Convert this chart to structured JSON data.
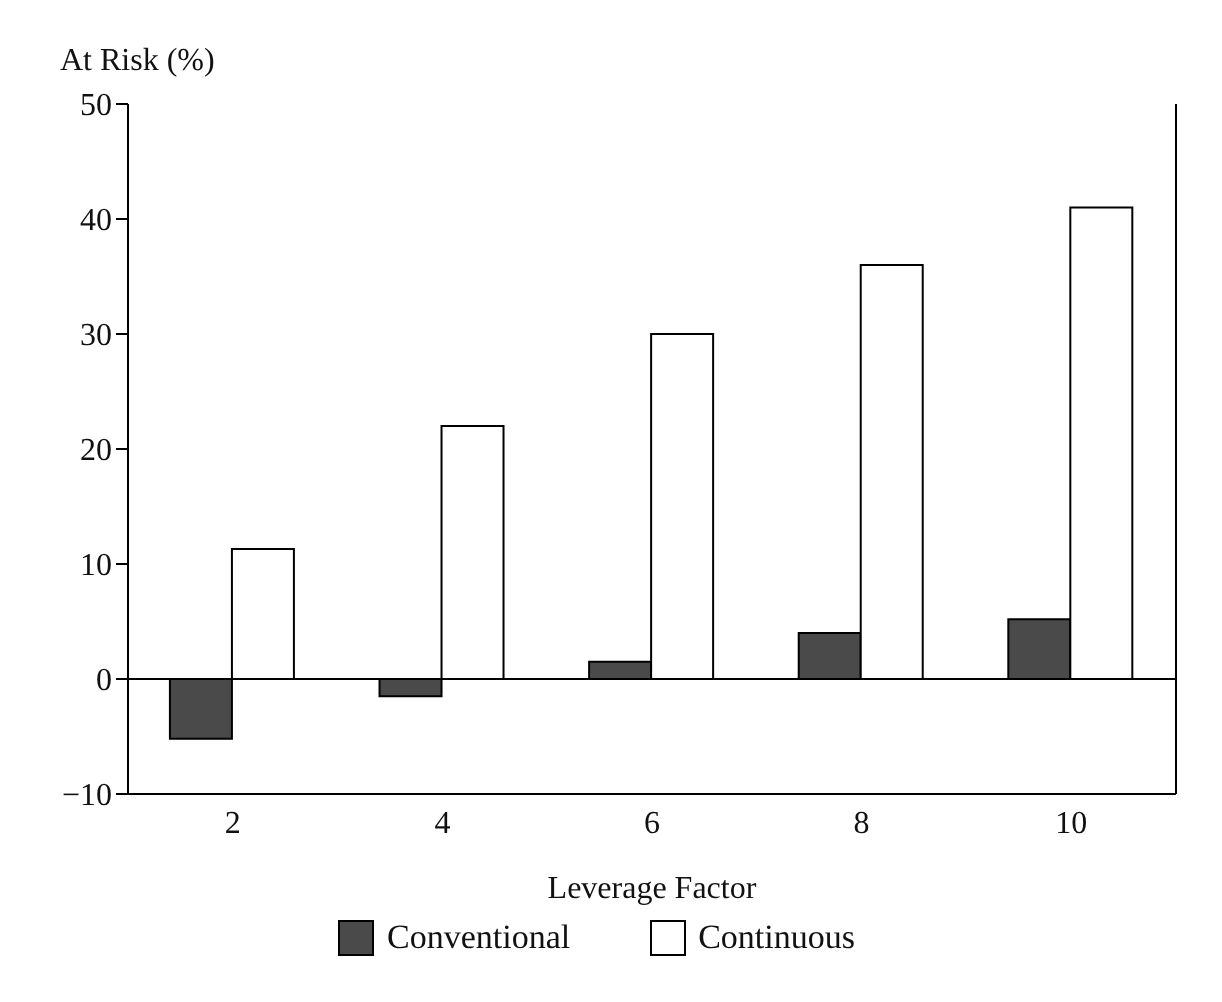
{
  "chart_data": {
    "type": "bar",
    "ylabel": "At Risk (%)",
    "xlabel": "Leverage Factor",
    "categories": [
      "2",
      "4",
      "6",
      "8",
      "10"
    ],
    "series": [
      {
        "name": "Conventional",
        "color": "#4a4a4a",
        "values": [
          -5.2,
          -1.5,
          1.5,
          4,
          5.2
        ]
      },
      {
        "name": "Continuous",
        "color": "#ffffff",
        "values": [
          11.3,
          22,
          30,
          36,
          41
        ]
      }
    ],
    "ylim": [
      -10,
      50
    ],
    "yticks": [
      -10,
      0,
      10,
      20,
      30,
      40,
      50
    ],
    "legend": "bottom",
    "ref_lines": [
      {
        "axis": "y",
        "value": 0,
        "color": "#000000"
      }
    ]
  }
}
